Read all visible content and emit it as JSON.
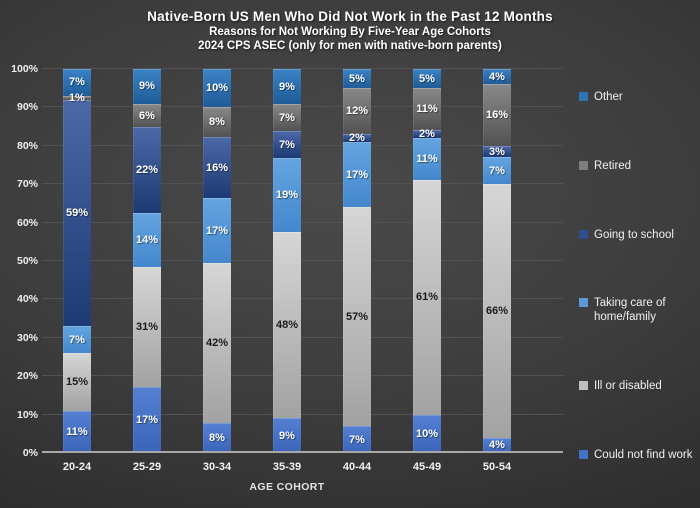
{
  "chart_data": {
    "type": "bar",
    "stacked": true,
    "title": "Native-Born US Men Who Did Not Work in the Past 12 Months",
    "subtitle": "Reasons for Not Working By Five-Year Age Cohorts",
    "subtitle2": "2024 CPS ASEC (only for men with native-born parents)",
    "xlabel": "AGE COHORT",
    "ylabel": "",
    "ylim": [
      0,
      100
    ],
    "grid": true,
    "y_tick_labels": [
      "100%",
      "90%",
      "80%",
      "70%",
      "60%",
      "50%",
      "40%",
      "30%",
      "20%",
      "10%",
      "0%"
    ],
    "categories": [
      "20-24",
      "25-29",
      "30-34",
      "35-39",
      "40-44",
      "45-49",
      "50-54"
    ],
    "series": [
      {
        "name": "Could not find work",
        "values": [
          11,
          17,
          8,
          9,
          7,
          10,
          4
        ],
        "color_top": "#5580d2",
        "color_bottom": "#3a64b8",
        "label_color": "#ffffff"
      },
      {
        "name": "Ill or disabled",
        "values": [
          15,
          31,
          42,
          48,
          57,
          61,
          66
        ],
        "color_top": "#d6d6d6",
        "color_bottom": "#a2a2a2",
        "label_color": "#1a1a1a"
      },
      {
        "name": "Taking care of home/family",
        "values": [
          7,
          14,
          17,
          19,
          17,
          11,
          7
        ],
        "color_top": "#64a4e0",
        "color_bottom": "#4487cd",
        "label_color": "#ffffff"
      },
      {
        "name": "Going to school",
        "values": [
          59,
          22,
          16,
          7,
          2,
          2,
          3
        ],
        "color_top": "#4c68a6",
        "color_bottom": "#1e3a74",
        "label_color": "#ffffff"
      },
      {
        "name": "Retired",
        "values": [
          1,
          6,
          8,
          7,
          12,
          11,
          16
        ],
        "color_top": "#898989",
        "color_bottom": "#525252",
        "label_color": "#ffffff"
      },
      {
        "name": "Other",
        "values": [
          7,
          9,
          10,
          9,
          5,
          5,
          4
        ],
        "color_top": "#3b83c6",
        "color_bottom": "#1f5b97",
        "label_color": "#ffffff"
      }
    ],
    "legend": {
      "position": "right",
      "items_top_to_bottom": [
        {
          "label": "Other",
          "swatch": "#2e74b5"
        },
        {
          "label": "Retired",
          "swatch": "#7f7f7f"
        },
        {
          "label": "Going to school",
          "swatch": "#2f4d8f"
        },
        {
          "label": "Taking care of home/family",
          "swatch": "#5b9bd5"
        },
        {
          "label": "Ill or disabled",
          "swatch": "#bfbfbf"
        },
        {
          "label": "Could not find work",
          "swatch": "#4472c4"
        }
      ]
    }
  }
}
